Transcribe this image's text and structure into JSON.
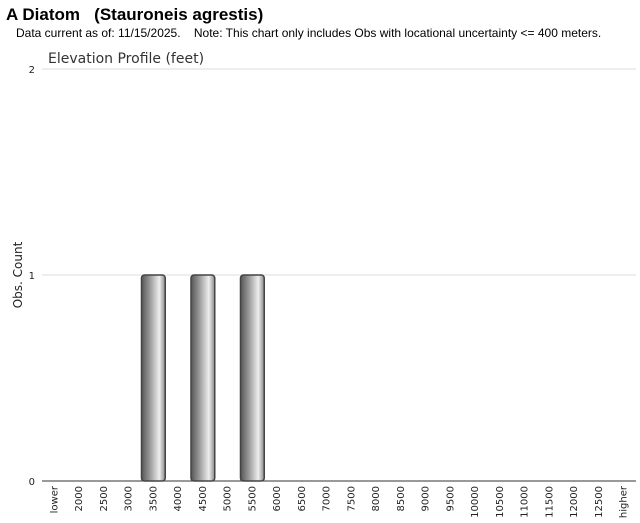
{
  "header": {
    "title": "A Diatom   (Stauroneis agrestis)",
    "note": "Data current as of: 11/15/2025.    Note: This chart only includes Obs with locational uncertainty <= 400 meters."
  },
  "chart_data": {
    "type": "bar",
    "title": "Elevation Profile (feet)",
    "y_label": "Obs. Count",
    "categories": [
      "lower",
      "2000",
      "2500",
      "3000",
      "3500",
      "4000",
      "4500",
      "5000",
      "5500",
      "6000",
      "6500",
      "7000",
      "7500",
      "8000",
      "8500",
      "9000",
      "9500",
      "10000",
      "10500",
      "11000",
      "11500",
      "12000",
      "12500",
      "higher"
    ],
    "values": [
      0,
      0,
      0,
      0,
      1,
      0,
      1,
      0,
      1,
      0,
      0,
      0,
      0,
      0,
      0,
      0,
      0,
      0,
      0,
      0,
      0,
      0,
      0,
      0
    ],
    "color": "#9a9a9a",
    "ylim": [
      0,
      2
    ],
    "yticks": [
      0,
      1,
      2
    ],
    "grid": true
  }
}
